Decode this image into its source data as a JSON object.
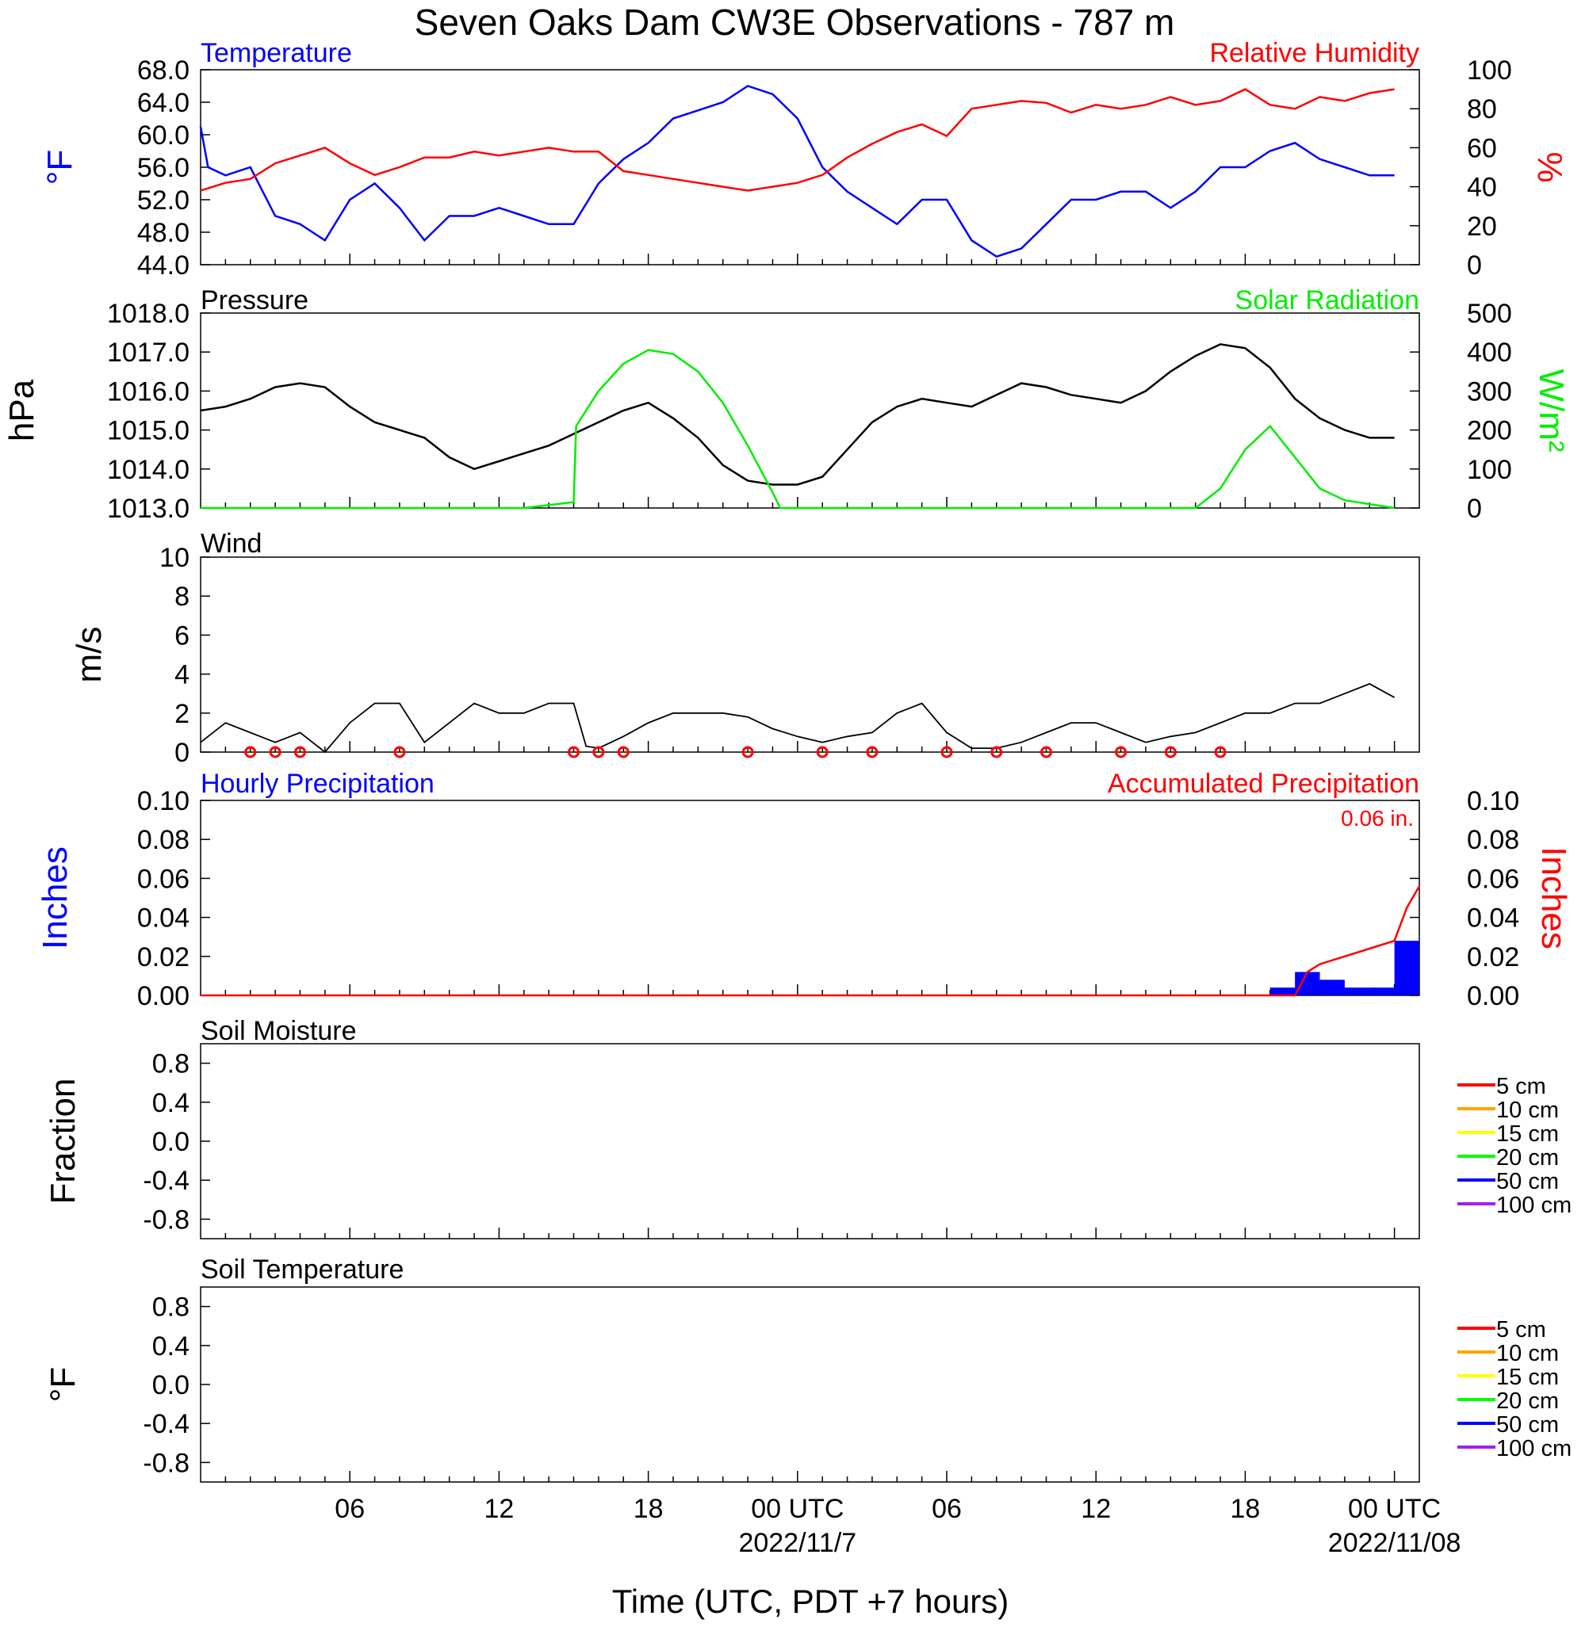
{
  "title": "Seven Oaks Dam CW3E Observations - 787 m",
  "xlabel": "Time (UTC, PDT +7 hours)",
  "x_ticks": [
    {
      "hour": 6,
      "label": "06"
    },
    {
      "hour": 12,
      "label": "12"
    },
    {
      "hour": 18,
      "label": "18"
    },
    {
      "hour": 24,
      "label": "00 UTC"
    },
    {
      "hour": 30,
      "label": "06"
    },
    {
      "hour": 36,
      "label": "12"
    },
    {
      "hour": 42,
      "label": "18"
    },
    {
      "hour": 48,
      "label": "00 UTC"
    }
  ],
  "date_labels": [
    {
      "hour": 24,
      "label": "2022/11/7"
    },
    {
      "hour": 48,
      "label": "2022/11/08"
    }
  ],
  "colors": {
    "temperature": "#0000ff",
    "humidity": "#ff0000",
    "pressure": "#000000",
    "solar": "#00ee00",
    "wind": "#000000",
    "barb": "#ff0000",
    "hourly_precip": "#0000ff",
    "accum_precip": "#ff0000"
  },
  "legend_depths": [
    {
      "label": "5 cm",
      "color": "#ff0000"
    },
    {
      "label": "10 cm",
      "color": "#ffa500"
    },
    {
      "label": "15 cm",
      "color": "#ffff00"
    },
    {
      "label": "20 cm",
      "color": "#00ff00"
    },
    {
      "label": "50 cm",
      "color": "#0000ff"
    },
    {
      "label": "100 cm",
      "color": "#a020f0"
    }
  ],
  "panels": {
    "temp_rh": {
      "left_title": "Temperature",
      "right_title": "Relative Humidity",
      "left_ylabel": "°F",
      "right_ylabel": "%",
      "left_ticks": [
        "44.0",
        "48.0",
        "52.0",
        "56.0",
        "60.0",
        "64.0",
        "68.0"
      ],
      "right_ticks": [
        "0",
        "20",
        "40",
        "60",
        "80",
        "100"
      ]
    },
    "pressure_solar": {
      "left_title": "Pressure",
      "right_title": "Solar Radiation",
      "left_ylabel": "hPa",
      "right_ylabel": "W/m²",
      "left_ticks": [
        "1013.0",
        "1014.0",
        "1015.0",
        "1016.0",
        "1017.0",
        "1018.0"
      ],
      "right_ticks": [
        "0",
        "100",
        "200",
        "300",
        "400",
        "500"
      ]
    },
    "wind": {
      "left_title": "Wind",
      "left_ylabel": "m/s",
      "left_ticks": [
        "0",
        "2",
        "4",
        "6",
        "8",
        "10"
      ]
    },
    "precip": {
      "left_title": "Hourly Precipitation",
      "right_title": "Accumulated Precipitation",
      "left_ylabel": "Inches",
      "right_ylabel": "Inches",
      "left_ticks": [
        "0.00",
        "0.02",
        "0.04",
        "0.06",
        "0.08",
        "0.10"
      ],
      "right_ticks": [
        "0.00",
        "0.02",
        "0.04",
        "0.06",
        "0.08",
        "0.10"
      ],
      "total_label": "0.06 in."
    },
    "soil_moisture": {
      "left_title": "Soil Moisture",
      "left_ylabel": "Fraction",
      "left_ticks": [
        "-0.8",
        "-0.4",
        "0.0",
        "0.4",
        "0.8"
      ]
    },
    "soil_temperature": {
      "left_title": "Soil Temperature",
      "left_ylabel": "°F",
      "left_ticks": [
        "-0.8",
        "-0.4",
        "0.0",
        "0.4",
        "0.8"
      ]
    }
  },
  "chart_data": [
    {
      "type": "line",
      "title": "Temperature / Relative Humidity",
      "xlim": [
        0,
        49
      ],
      "ylim": [
        44,
        68
      ],
      "y2lim": [
        0,
        100
      ],
      "series": [
        {
          "name": "Temperature",
          "axis": "left",
          "x": [
            0,
            0.3,
            1,
            2,
            3,
            4,
            5,
            6,
            7,
            8,
            9,
            10,
            11,
            12,
            13,
            14,
            15,
            16,
            17,
            18,
            19,
            20,
            21,
            22,
            23,
            24,
            25,
            26,
            27,
            28,
            29,
            30,
            31,
            32,
            33,
            34,
            35,
            36,
            37,
            38,
            39,
            40,
            41,
            42,
            43,
            44,
            45,
            46,
            47,
            48
          ],
          "y": [
            61,
            56,
            55,
            56,
            50,
            49,
            47,
            52,
            54,
            51,
            47,
            50,
            50,
            51,
            50,
            49,
            49,
            54,
            57,
            59,
            62,
            63,
            64,
            66,
            65,
            62,
            56,
            53,
            51,
            49,
            52,
            52,
            47,
            45,
            46,
            49,
            52,
            52,
            53,
            53,
            51,
            53,
            56,
            56,
            58,
            59,
            57,
            56,
            55,
            55
          ]
        },
        {
          "name": "Relative Humidity",
          "axis": "right",
          "x": [
            0,
            1,
            2,
            3,
            4,
            5,
            6,
            7,
            8,
            9,
            10,
            11,
            12,
            13,
            14,
            15,
            16,
            17,
            18,
            19,
            20,
            21,
            22,
            23,
            24,
            25,
            26,
            27,
            28,
            29,
            30,
            31,
            32,
            33,
            34,
            35,
            36,
            37,
            38,
            39,
            40,
            41,
            42,
            43,
            44,
            45,
            46,
            47,
            48
          ],
          "y": [
            38,
            42,
            44,
            52,
            56,
            60,
            52,
            46,
            50,
            55,
            55,
            58,
            56,
            58,
            60,
            58,
            58,
            48,
            46,
            44,
            42,
            40,
            38,
            40,
            42,
            46,
            55,
            62,
            68,
            72,
            66,
            80,
            82,
            84,
            83,
            78,
            82,
            80,
            82,
            86,
            82,
            84,
            90,
            82,
            80,
            86,
            84,
            88,
            90
          ]
        }
      ]
    },
    {
      "type": "line",
      "title": "Pressure / Solar Radiation",
      "xlim": [
        0,
        49
      ],
      "ylim": [
        1013,
        1018
      ],
      "y2lim": [
        0,
        500
      ],
      "series": [
        {
          "name": "Pressure",
          "axis": "left",
          "x": [
            0,
            1,
            2,
            3,
            4,
            5,
            6,
            7,
            8,
            9,
            10,
            11,
            12,
            13,
            14,
            15,
            16,
            17,
            18,
            19,
            20,
            21,
            22,
            23,
            24,
            25,
            26,
            27,
            28,
            29,
            30,
            31,
            32,
            33,
            34,
            35,
            36,
            37,
            38,
            39,
            40,
            41,
            42,
            43,
            44,
            45,
            46,
            47,
            48
          ],
          "y": [
            1015.5,
            1015.6,
            1015.8,
            1016.1,
            1016.2,
            1016.1,
            1015.6,
            1015.2,
            1015.0,
            1014.8,
            1014.3,
            1014.0,
            1014.2,
            1014.4,
            1014.6,
            1014.9,
            1015.2,
            1015.5,
            1015.7,
            1015.3,
            1014.8,
            1014.1,
            1013.7,
            1013.6,
            1013.6,
            1013.8,
            1014.5,
            1015.2,
            1015.6,
            1015.8,
            1015.7,
            1015.6,
            1015.9,
            1016.2,
            1016.1,
            1015.9,
            1015.8,
            1015.7,
            1016.0,
            1016.5,
            1016.9,
            1017.2,
            1017.1,
            1016.6,
            1015.8,
            1015.3,
            1015.0,
            1014.8,
            1014.8
          ]
        },
        {
          "name": "Solar Radiation",
          "axis": "right",
          "x": [
            0,
            13,
            15,
            15.1,
            16,
            17,
            18,
            19,
            20,
            21,
            22,
            23,
            23.3,
            24,
            40,
            41,
            42,
            43,
            44,
            45,
            46,
            47,
            48
          ],
          "y": [
            0,
            0,
            15,
            210,
            300,
            370,
            405,
            395,
            350,
            270,
            160,
            40,
            0,
            0,
            0,
            50,
            150,
            210,
            130,
            50,
            20,
            10,
            0
          ]
        }
      ]
    },
    {
      "type": "line",
      "title": "Wind",
      "xlim": [
        0,
        49
      ],
      "ylim": [
        0,
        10
      ],
      "series": [
        {
          "name": "Wind",
          "x": [
            0,
            1,
            2,
            3,
            4,
            5,
            6,
            7,
            8,
            9,
            10,
            11,
            12,
            13,
            14,
            15,
            15.5,
            16,
            17,
            18,
            19,
            20,
            21,
            22,
            23,
            24,
            25,
            26,
            27,
            28,
            29,
            30,
            31,
            32,
            33,
            34,
            35,
            36,
            37,
            38,
            39,
            40,
            41,
            42,
            43,
            44,
            45,
            46,
            47,
            48
          ],
          "y": [
            0.5,
            1.5,
            1.0,
            0.5,
            1.0,
            0,
            1.5,
            2.5,
            2.5,
            0.5,
            1.5,
            2.5,
            2.0,
            2.0,
            2.5,
            2.5,
            0.3,
            0.2,
            0.8,
            1.5,
            2.0,
            2.0,
            2.0,
            1.8,
            1.2,
            0.8,
            0.5,
            0.8,
            1.0,
            2.0,
            2.5,
            1.0,
            0.2,
            0.2,
            0.5,
            1.0,
            1.5,
            1.5,
            1.0,
            0.5,
            0.8,
            1.0,
            1.5,
            2.0,
            2.0,
            2.5,
            2.5,
            3.0,
            3.5,
            2.8
          ]
        }
      ],
      "calm_circles_hours": [
        2,
        3,
        4,
        8,
        15,
        16,
        17,
        22,
        25,
        27,
        30,
        32,
        34,
        37,
        39,
        41
      ]
    },
    {
      "type": "bar",
      "title": "Hourly Precipitation / Accumulated Precipitation",
      "xlim": [
        0,
        49
      ],
      "ylim": [
        0,
        0.1
      ],
      "series": [
        {
          "name": "Hourly Precipitation",
          "x": [
            43,
            44,
            45,
            46,
            47,
            48
          ],
          "values": [
            0.004,
            0.012,
            0.008,
            0.004,
            0.004,
            0.028
          ]
        },
        {
          "name": "Accumulated Precipitation",
          "type": "line",
          "x": [
            43,
            44,
            44.5,
            45,
            46,
            47,
            48,
            48.5,
            49
          ],
          "values": [
            0,
            0,
            0.012,
            0.016,
            0.02,
            0.024,
            0.028,
            0.045,
            0.056
          ]
        }
      ]
    },
    {
      "type": "line",
      "title": "Soil Moisture",
      "xlim": [
        0,
        49
      ],
      "ylim": [
        -1,
        1
      ],
      "series": []
    },
    {
      "type": "line",
      "title": "Soil Temperature",
      "xlim": [
        0,
        49
      ],
      "ylim": [
        -1,
        1
      ],
      "series": []
    }
  ]
}
